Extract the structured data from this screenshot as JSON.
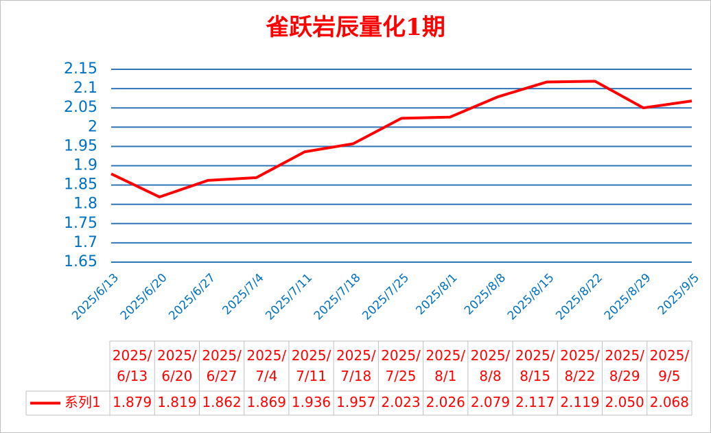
{
  "chart_data": {
    "type": "line",
    "title": "雀跃岩辰量化1期",
    "categories": [
      "2025/6/13",
      "2025/6/20",
      "2025/6/27",
      "2025/7/4",
      "2025/7/11",
      "2025/7/18",
      "2025/7/25",
      "2025/8/1",
      "2025/8/8",
      "2025/8/15",
      "2025/8/22",
      "2025/8/29",
      "2025/9/5"
    ],
    "series": [
      {
        "name": "系列1",
        "color": "#ff0000",
        "values": [
          1.879,
          1.819,
          1.862,
          1.869,
          1.936,
          1.957,
          2.023,
          2.026,
          2.079,
          2.117,
          2.119,
          2.05,
          2.068
        ],
        "value_labels": [
          "1.879",
          "1.819",
          "1.862",
          "1.869",
          "1.936",
          "1.957",
          "2.023",
          "2.026",
          "2.079",
          "2.117",
          "2.119",
          "2.050",
          "2.068"
        ]
      }
    ],
    "ylim": [
      1.65,
      2.15
    ],
    "yticks": [
      1.65,
      1.7,
      1.75,
      1.8,
      1.85,
      1.9,
      1.95,
      2,
      2.05,
      2.1,
      2.15
    ],
    "grid": true
  }
}
